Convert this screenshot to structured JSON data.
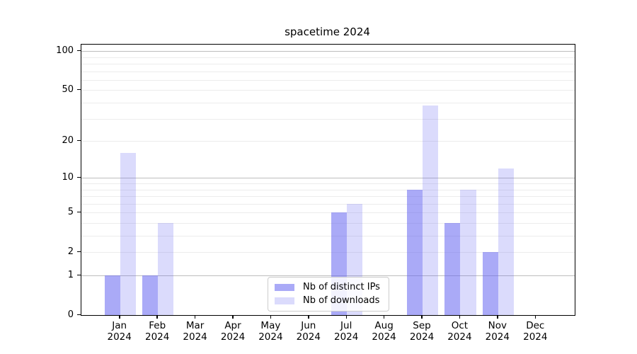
{
  "chart_data": {
    "type": "bar",
    "title": "spacetime 2024",
    "yscale": "log1p",
    "ylim": [
      0,
      112
    ],
    "yticks": [
      0,
      1,
      2,
      5,
      10,
      20,
      50,
      100
    ],
    "grid_major": [
      1,
      10,
      100
    ],
    "grid_minor": [
      2,
      3,
      4,
      5,
      6,
      7,
      8,
      9,
      20,
      30,
      40,
      50,
      60,
      70,
      80,
      90
    ],
    "grid": "both",
    "legend_position": "lower center inside plot",
    "categories": [
      {
        "month": "Jan",
        "year": "2024"
      },
      {
        "month": "Feb",
        "year": "2024"
      },
      {
        "month": "Mar",
        "year": "2024"
      },
      {
        "month": "Apr",
        "year": "2024"
      },
      {
        "month": "May",
        "year": "2024"
      },
      {
        "month": "Jun",
        "year": "2024"
      },
      {
        "month": "Jul",
        "year": "2024"
      },
      {
        "month": "Aug",
        "year": "2024"
      },
      {
        "month": "Sep",
        "year": "2024"
      },
      {
        "month": "Oct",
        "year": "2024"
      },
      {
        "month": "Nov",
        "year": "2024"
      },
      {
        "month": "Dec",
        "year": "2024"
      }
    ],
    "series": [
      {
        "name": "Nb of distinct IPs",
        "color": "rgba(100,100,240,0.55)",
        "hex_on_white": "#aaaaf7",
        "values": [
          1,
          1,
          0,
          0,
          0,
          0,
          5,
          0,
          8,
          4,
          2,
          0
        ]
      },
      {
        "name": "Nb of downloads",
        "color": "rgba(100,100,240,0.23)",
        "hex_on_white": "#dbdbf9",
        "values": [
          16,
          4,
          0,
          0,
          0,
          0,
          6,
          0,
          38,
          8,
          12,
          0
        ]
      }
    ],
    "colors": {
      "grid_major": "#bdbdbd",
      "grid_minor": "#ececec",
      "spine": "#000000",
      "text": "#000000",
      "background": "#ffffff"
    }
  }
}
